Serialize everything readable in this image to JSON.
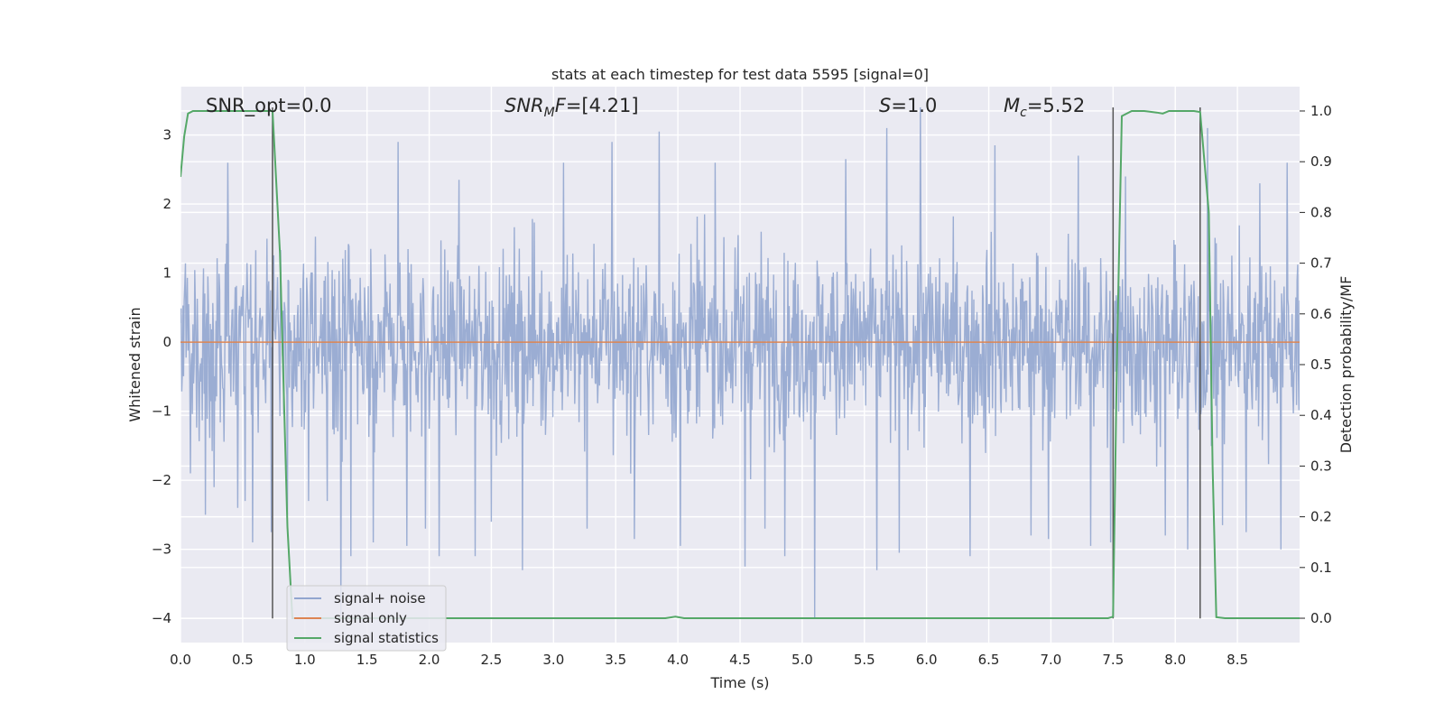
{
  "chart_data": {
    "type": "line",
    "title": "stats at each timestep for test data 5595 [signal=0]",
    "xlabel": "Time (s)",
    "ylabel": "Whitened strain",
    "y2label": "Detection probability/MF",
    "xlim": [
      0.0,
      9.0
    ],
    "ylim": [
      -4.35,
      3.7
    ],
    "y2lim": [
      -0.048,
      1.048
    ],
    "xticks": [
      "0.0",
      "0.5",
      "1.0",
      "1.5",
      "2.0",
      "2.5",
      "3.0",
      "3.5",
      "4.0",
      "4.5",
      "5.0",
      "5.5",
      "6.0",
      "6.5",
      "7.0",
      "7.5",
      "8.0",
      "8.5"
    ],
    "yticks": [
      "3",
      "2",
      "1",
      "0",
      "−1",
      "−2",
      "−3",
      "−4"
    ],
    "y2ticks": [
      "1.0",
      "0.9",
      "0.8",
      "0.7",
      "0.6",
      "0.5",
      "0.4",
      "0.3",
      "0.2",
      "0.1",
      "0.0"
    ],
    "grid": true,
    "legend_position": "bottom-left",
    "annotations": {
      "snr_opt": {
        "prefix": "SNR_opt=",
        "value": "0.0"
      },
      "snr_mf": {
        "base": "SNR",
        "sub": "M",
        "tail": "F=",
        "value": "[4.21]"
      },
      "s": {
        "base": "S",
        "value": "=1.0"
      },
      "mc": {
        "base": "M",
        "sub": "c",
        "value": "=5.52"
      }
    },
    "series": [
      {
        "name": "signal+ noise",
        "color": "#92a6cf",
        "kind": "noise",
        "spikes": [
          [
            0.08,
            -1.9
          ],
          [
            0.2,
            -2.5
          ],
          [
            0.27,
            -2.1
          ],
          [
            0.38,
            2.6
          ],
          [
            0.46,
            -2.4
          ],
          [
            0.52,
            -2.3
          ],
          [
            0.58,
            -2.9
          ],
          [
            0.73,
            -2.75
          ],
          [
            0.86,
            -2.5
          ],
          [
            1.03,
            -2.3
          ],
          [
            1.18,
            -2.3
          ],
          [
            1.29,
            -3.95
          ],
          [
            1.37,
            -3.1
          ],
          [
            1.55,
            -2.9
          ],
          [
            1.75,
            2.9
          ],
          [
            1.82,
            -2.95
          ],
          [
            1.97,
            -2.7
          ],
          [
            2.08,
            -3.1
          ],
          [
            2.24,
            2.35
          ],
          [
            2.37,
            -3.1
          ],
          [
            2.5,
            -2.6
          ],
          [
            2.75,
            -3.3
          ],
          [
            3.08,
            2.6
          ],
          [
            3.27,
            -2.7
          ],
          [
            3.47,
            2.9
          ],
          [
            3.65,
            -2.85
          ],
          [
            3.85,
            3.05
          ],
          [
            4.02,
            -2.95
          ],
          [
            4.3,
            2.6
          ],
          [
            4.54,
            -3.25
          ],
          [
            4.7,
            -2.7
          ],
          [
            4.86,
            -3.1
          ],
          [
            5.1,
            -4.0
          ],
          [
            5.35,
            2.65
          ],
          [
            5.6,
            -3.3
          ],
          [
            5.68,
            3.1
          ],
          [
            5.78,
            -3.05
          ],
          [
            5.95,
            3.4
          ],
          [
            6.35,
            -3.1
          ],
          [
            6.55,
            2.85
          ],
          [
            6.84,
            -2.8
          ],
          [
            6.98,
            -2.85
          ],
          [
            7.22,
            2.7
          ],
          [
            7.32,
            -2.95
          ],
          [
            7.48,
            -2.9
          ],
          [
            7.6,
            2.4
          ],
          [
            7.92,
            -2.8
          ],
          [
            8.1,
            -3.0
          ],
          [
            8.26,
            3.1
          ],
          [
            8.38,
            -2.65
          ],
          [
            8.57,
            -2.75
          ],
          [
            8.68,
            2.3
          ],
          [
            8.85,
            -3.0
          ],
          [
            8.9,
            2.6
          ]
        ]
      },
      {
        "name": "signal only",
        "color": "#dd8452",
        "kind": "constant",
        "value": 0.0
      },
      {
        "name": "signal statistics",
        "color": "#55a868",
        "kind": "line",
        "axis": "y2",
        "x": [
          0.0,
          0.03,
          0.06,
          0.1,
          0.2,
          0.3,
          0.4,
          0.5,
          0.6,
          0.7,
          0.74,
          0.8,
          0.86,
          0.9,
          1.0,
          2.0,
          3.0,
          3.9,
          3.98,
          4.05,
          4.2,
          5.0,
          6.0,
          7.0,
          7.46,
          7.5,
          7.53,
          7.57,
          7.65,
          7.75,
          7.85,
          7.9,
          7.95,
          8.05,
          8.15,
          8.2,
          8.27,
          8.3,
          8.33,
          8.4,
          8.5,
          8.6,
          8.7,
          8.8,
          8.9,
          9.0
        ],
        "y": [
          0.87,
          0.95,
          0.995,
          1.0,
          1.0,
          1.0,
          1.0,
          1.0,
          1.0,
          1.0,
          1.0,
          0.72,
          0.18,
          0.0,
          0.0,
          0.0,
          0.0,
          0.0,
          0.003,
          0.0,
          0.0,
          0.0,
          0.0,
          0.0,
          0.0,
          0.003,
          0.5,
          0.99,
          1.0,
          1.0,
          0.997,
          0.995,
          1.0,
          1.0,
          1.0,
          0.998,
          0.8,
          0.3,
          0.002,
          0.0,
          0.0,
          0.0,
          0.0,
          0.0,
          0.0,
          0.0
        ]
      }
    ],
    "vlines": [
      0.74,
      7.5,
      8.2
    ]
  }
}
